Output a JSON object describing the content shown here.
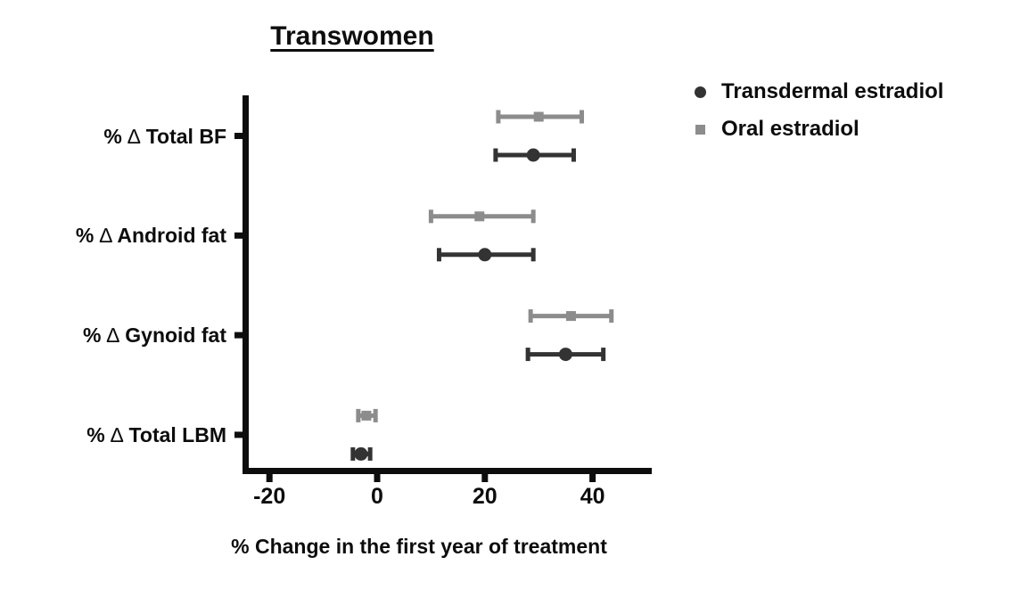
{
  "chart": {
    "title": "Transwomen",
    "xlabel": "% Change in the first year of treatment"
  },
  "legend": {
    "items": [
      {
        "label": "Transdermal estradiol",
        "marker": "circle-icon",
        "color": "#333333"
      },
      {
        "label": "Oral estradiol",
        "marker": "square-icon",
        "color": "#8c8c8c"
      }
    ]
  },
  "chart_data": {
    "type": "scatter",
    "subtype": "horizontal-forest-plot-with-error-bars",
    "title": "Transwomen",
    "xlabel": "% Change in the first year of treatment",
    "categories": [
      "% ∆ Total BF",
      "% ∆ Android fat",
      "% ∆ Gynoid fat",
      "% ∆ Total LBM"
    ],
    "series": [
      {
        "name": "Transdermal estradiol",
        "marker": "circle",
        "color": "#333333",
        "values": [
          29,
          20,
          35,
          -3
        ],
        "ci_low": [
          22,
          11.5,
          28,
          -4.5
        ],
        "ci_high": [
          36.5,
          29,
          42,
          -1.3
        ]
      },
      {
        "name": "Oral estradiol",
        "marker": "square",
        "color": "#8c8c8c",
        "values": [
          30,
          19,
          36,
          -2
        ],
        "ci_low": [
          22.5,
          10,
          28.5,
          -3.5
        ],
        "ci_high": [
          38,
          29,
          43.5,
          -0.3
        ]
      }
    ],
    "x_ticks": [
      -20,
      0,
      20,
      40
    ],
    "xlim": [
      -25,
      51
    ],
    "grid": false,
    "legend_position": "top-right"
  }
}
